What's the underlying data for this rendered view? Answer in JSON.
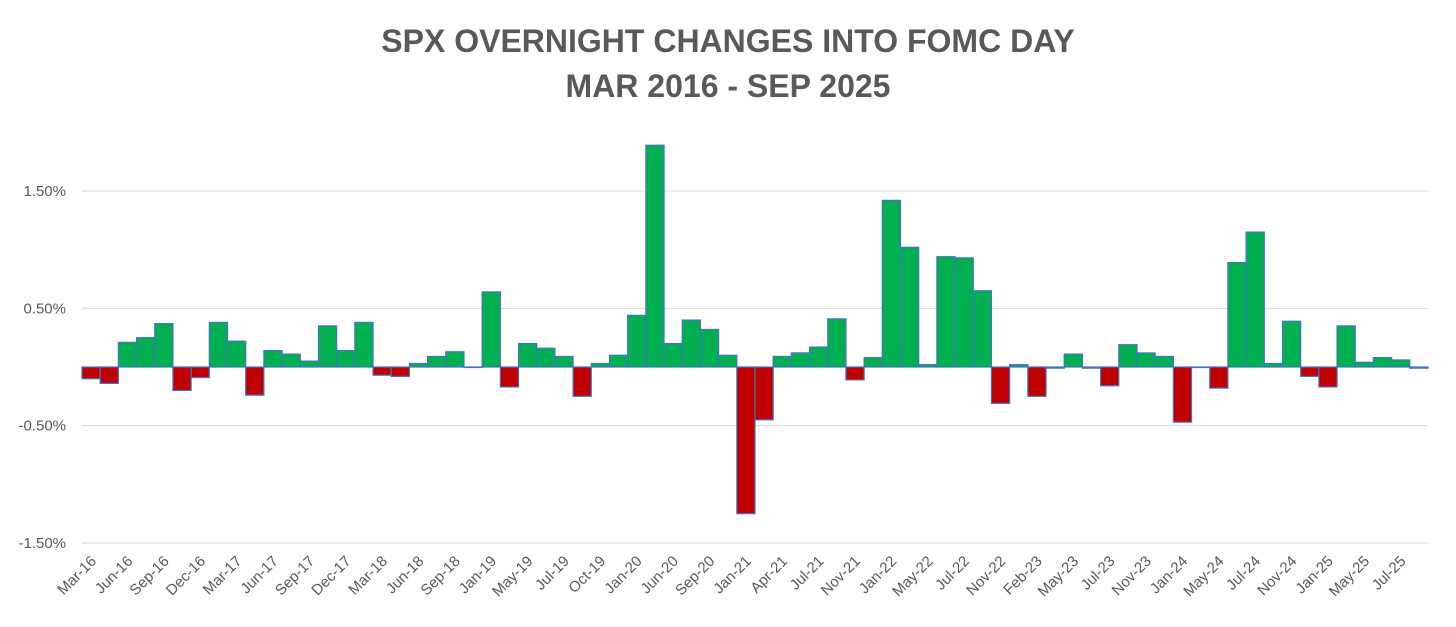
{
  "chart_data": {
    "type": "bar",
    "title": "SPX OVERNIGHT CHANGES INTO FOMC DAY",
    "subtitle": "MAR 2016 - SEP 2025",
    "categories": [
      "Mar-16",
      null,
      "Jun-16",
      null,
      "Sep-16",
      null,
      "Dec-16",
      null,
      "Mar-17",
      null,
      "Jun-17",
      null,
      "Sep-17",
      null,
      "Dec-17",
      null,
      "Mar-18",
      null,
      "Jun-18",
      null,
      "Sep-18",
      null,
      "Jan-19",
      null,
      "May-19",
      null,
      "Jul-19",
      null,
      "Oct-19",
      null,
      "Jan-20",
      null,
      "Jun-20",
      null,
      "Sep-20",
      null,
      "Jan-21",
      null,
      "Apr-21",
      null,
      "Jul-21",
      null,
      "Nov-21",
      null,
      "Jan-22",
      null,
      "May-22",
      null,
      "Jul-22",
      null,
      "Nov-22",
      null,
      "Feb-23",
      null,
      "May-23",
      null,
      "Jul-23",
      null,
      "Nov-23",
      null,
      "Jan-24",
      null,
      "May-24",
      null,
      "Jul-24",
      null,
      "Nov-24",
      null,
      "Jan-25",
      null,
      "May-25",
      null,
      "Jul-25",
      null
    ],
    "values": [
      -0.1,
      -0.14,
      0.21,
      0.25,
      0.37,
      -0.2,
      -0.09,
      0.38,
      0.22,
      -0.24,
      0.14,
      0.11,
      0.05,
      0.35,
      0.14,
      0.38,
      -0.07,
      -0.08,
      0.03,
      0.09,
      0.13,
      0.0,
      0.64,
      -0.17,
      0.2,
      0.16,
      0.09,
      -0.25,
      0.03,
      0.1,
      0.44,
      1.89,
      0.2,
      0.4,
      0.32,
      0.1,
      -1.25,
      -0.45,
      0.09,
      0.12,
      0.17,
      0.41,
      -0.11,
      0.08,
      1.42,
      1.02,
      0.02,
      0.94,
      0.93,
      0.65,
      -0.31,
      0.02,
      -0.25,
      -0.01,
      0.11,
      -0.01,
      -0.16,
      0.19,
      0.12,
      0.09,
      -0.47,
      0.0,
      -0.18,
      0.89,
      1.15,
      0.03,
      0.39,
      -0.08,
      -0.17,
      0.35,
      0.04,
      0.08,
      0.06,
      -0.01
    ],
    "color_positive": "#00b050",
    "color_negative": "#c00000",
    "edge_color": "#4472c4",
    "ylim": [
      -1.5,
      2.0
    ],
    "yticks": [
      {
        "value": -1.5,
        "label": "-1.50%"
      },
      {
        "value": -0.5,
        "label": "-0.50%"
      },
      {
        "value": 0.5,
        "label": "0.50%"
      },
      {
        "value": 1.5,
        "label": "1.50%"
      }
    ],
    "grid": true
  }
}
